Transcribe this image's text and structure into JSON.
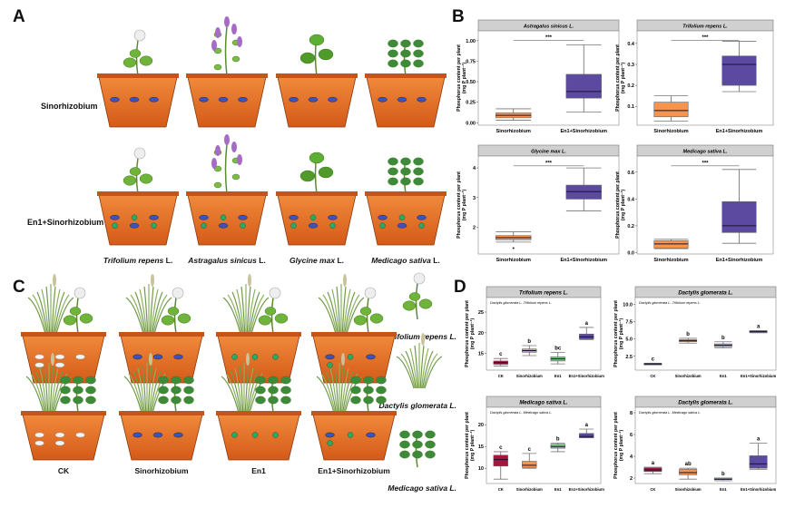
{
  "panels": {
    "A": "A",
    "B": "B",
    "C": "C",
    "D": "D"
  },
  "panel_a": {
    "rows": [
      "Sinorhizobium",
      "En1+Sinorhizobium"
    ],
    "species": [
      {
        "genus": "Trifolium repens",
        "suffix": " L."
      },
      {
        "genus": "Astragalus sinicus",
        "suffix": " L."
      },
      {
        "genus": "Glycine max",
        "suffix": " L."
      },
      {
        "genus": "Medicago sativa",
        "suffix": " L."
      }
    ]
  },
  "panel_c": {
    "groups": [
      "CK",
      "Sinorhizobium",
      "En1",
      "En1+Sinorhizobium"
    ],
    "legend": [
      "Trifolium repens L.",
      "Dactylis glomerata L.",
      "Medicago sativa L."
    ]
  },
  "colors": {
    "CK": "#a3173f",
    "Sinorhizobium": "#f39450",
    "En1": "#7dc38d",
    "En1+Sinorhizobium": "#5b4a9f",
    "pot": "#e0702a"
  },
  "chart_data": [
    {
      "type": "box",
      "title": "Astragalus sinicus L.",
      "ylabel": "Phosphorus content per plant",
      "ylabel2": "(mg P plant⁻¹)",
      "categories": [
        "Sinorhizobium",
        "En1+Sinorhizobium"
      ],
      "ylim": [
        -0.03,
        1.12
      ],
      "yticks": [
        0,
        0.25,
        0.5,
        0.75,
        1.0
      ],
      "yticklabels": [
        "0.00",
        "0.25",
        "0.50",
        "0.75",
        "1.00"
      ],
      "significance": "***",
      "boxes": [
        {
          "min": 0.03,
          "q1": 0.06,
          "median": 0.09,
          "q3": 0.12,
          "max": 0.17,
          "color": "#f39450"
        },
        {
          "min": 0.13,
          "q1": 0.3,
          "median": 0.38,
          "q3": 0.59,
          "max": 0.95,
          "color": "#5b4a9f"
        }
      ]
    },
    {
      "type": "box",
      "title": "Trifolium repens L.",
      "ylabel": "Phosphorus content per plant",
      "ylabel2": "(mg P plant⁻¹)",
      "categories": [
        "Sinorhizobium",
        "En1+Sinorhizobium"
      ],
      "ylim": [
        0.01,
        0.46
      ],
      "yticks": [
        0.1,
        0.2,
        0.3,
        0.4
      ],
      "yticklabels": [
        "0.1",
        "0.2",
        "0.3",
        "0.4"
      ],
      "significance": "***",
      "boxes": [
        {
          "min": 0.03,
          "q1": 0.05,
          "median": 0.08,
          "q3": 0.12,
          "max": 0.15,
          "color": "#f39450"
        },
        {
          "min": 0.17,
          "q1": 0.2,
          "median": 0.3,
          "q3": 0.34,
          "max": 0.41,
          "color": "#5b4a9f"
        }
      ]
    },
    {
      "type": "box",
      "title": "Glycine max L.",
      "ylabel": "Phosphorus content per plant",
      "ylabel2": "(mg P plant⁻¹)",
      "categories": [
        "Sinorhizobium",
        "En1+Sinorhizobium"
      ],
      "ylim": [
        1.1,
        4.4
      ],
      "yticks": [
        2,
        3,
        4
      ],
      "yticklabels": [
        "2",
        "3",
        "4"
      ],
      "significance": "***",
      "boxes": [
        {
          "min": 1.5,
          "q1": 1.58,
          "median": 1.65,
          "q3": 1.72,
          "max": 1.85,
          "outliers": [
            1.3
          ],
          "color": "#f39450"
        },
        {
          "min": 2.55,
          "q1": 2.95,
          "median": 3.2,
          "q3": 3.42,
          "max": 4.0,
          "color": "#5b4a9f"
        }
      ]
    },
    {
      "type": "box",
      "title": "Medicago sativa L.",
      "ylabel": "Phosphorus content per plant",
      "ylabel2": "(mg P plant⁻¹)",
      "categories": [
        "Sinorhizobium",
        "En1+Sinorhizobium"
      ],
      "ylim": [
        -0.01,
        0.72
      ],
      "yticks": [
        0,
        0.2,
        0.4,
        0.6
      ],
      "yticklabels": [
        "0.0",
        "0.2",
        "0.4",
        "0.6"
      ],
      "significance": "***",
      "boxes": [
        {
          "min": 0.03,
          "q1": 0.035,
          "median": 0.065,
          "q3": 0.09,
          "max": 0.1,
          "color": "#f39450"
        },
        {
          "min": 0.07,
          "q1": 0.15,
          "median": 0.2,
          "q3": 0.38,
          "max": 0.62,
          "color": "#5b4a9f"
        }
      ]
    },
    {
      "type": "box",
      "title": "Trifolium repens  L.",
      "subtitle": "Dactylis glomerata L.-Trifolium repens L.",
      "ylabel": "Phosphorus content per plant",
      "ylabel2": "(mg P plant⁻¹)",
      "categories": [
        "CK",
        "Sinorhizobium",
        "En1",
        "En1+Sinorhizobium"
      ],
      "ylim": [
        11,
        28.5
      ],
      "yticks": [
        15,
        20,
        25
      ],
      "yticklabels": [
        "15",
        "20",
        "25"
      ],
      "letters": [
        "c",
        "b",
        "bc",
        "a"
      ],
      "boxes": [
        {
          "min": 12,
          "q1": 12.4,
          "median": 12.8,
          "q3": 13.2,
          "max": 13.8,
          "color": "#a3173f"
        },
        {
          "min": 14.5,
          "q1": 15.3,
          "median": 15.7,
          "q3": 16.1,
          "max": 16.9,
          "color": "#f39450"
        },
        {
          "min": 12.5,
          "q1": 13.2,
          "median": 13.7,
          "q3": 14.2,
          "max": 15.3,
          "color": "#7dc38d"
        },
        {
          "min": 18.3,
          "q1": 18.5,
          "median": 19,
          "q3": 19.7,
          "max": 21.3,
          "color": "#5b4a9f"
        }
      ]
    },
    {
      "type": "box",
      "title": "Dactylis glomerata  L.",
      "subtitle": "Dactylis glomerata L.-Trifolium repens L.",
      "ylabel": "Phosphorus content per plant",
      "ylabel2": "(mg P plant⁻¹)",
      "categories": [
        "CK",
        "Sinorhizobium",
        "En1",
        "En1+Sinorhizobium"
      ],
      "ylim": [
        0.5,
        11
      ],
      "yticks": [
        2.5,
        5.0,
        7.5,
        10.0
      ],
      "yticklabels": [
        "2.5",
        "5.0",
        "7.5",
        "10.0"
      ],
      "letters": [
        "c",
        "b",
        "b",
        "a"
      ],
      "boxes": [
        {
          "min": 1.3,
          "q1": 1.35,
          "median": 1.4,
          "q3": 1.45,
          "max": 1.5,
          "color": "#a3173f"
        },
        {
          "min": 4.4,
          "q1": 4.6,
          "median": 4.75,
          "q3": 4.9,
          "max": 5.1,
          "color": "#f39450"
        },
        {
          "min": 3.7,
          "q1": 3.9,
          "median": 4.1,
          "q3": 4.3,
          "max": 4.6,
          "color": "#7dc38d"
        },
        {
          "min": 5.9,
          "q1": 6.0,
          "median": 6.1,
          "q3": 6.15,
          "max": 6.2,
          "color": "#5b4a9f"
        }
      ]
    },
    {
      "type": "box",
      "title": "Medicago sativa  L.",
      "subtitle": "Dactylis glomerata L.-Medicago sativa L.",
      "ylabel": "Phosphorus content per plant",
      "ylabel2": "(mg P plant⁻¹)",
      "categories": [
        "CK",
        "Sinorhizobium",
        "En1",
        "En1+Sinorhizobium"
      ],
      "ylim": [
        6.5,
        24
      ],
      "yticks": [
        10,
        15,
        20
      ],
      "yticklabels": [
        "10",
        "15",
        "20"
      ],
      "letters": [
        "c",
        "c",
        "b",
        "a"
      ],
      "boxes": [
        {
          "min": 7.5,
          "q1": 10.5,
          "median": 12,
          "q3": 13,
          "max": 13.8,
          "color": "#a3173f"
        },
        {
          "min": 10,
          "q1": 10.2,
          "median": 10.7,
          "q3": 11.6,
          "max": 13.4,
          "color": "#f39450"
        },
        {
          "min": 13.8,
          "q1": 14.6,
          "median": 15,
          "q3": 15.5,
          "max": 15.8,
          "color": "#7dc38d"
        },
        {
          "min": 17,
          "q1": 17,
          "median": 17.3,
          "q3": 18,
          "max": 19,
          "color": "#5b4a9f"
        }
      ]
    },
    {
      "type": "box",
      "title": "Dactylis glomerata  L.",
      "subtitle": "Dactylis glomerata L.-Medicago sativa L.",
      "ylabel": "Phosphorus content per plant",
      "ylabel2": "(mg P plant⁻¹)",
      "categories": [
        "CK",
        "Sinorhizobium",
        "En1",
        "En1+Sinorhizobium"
      ],
      "ylim": [
        1.5,
        8.5
      ],
      "yticks": [
        2,
        4,
        6,
        8
      ],
      "yticklabels": [
        "2",
        "4",
        "6",
        "8"
      ],
      "letters": [
        "a",
        "ab",
        "b",
        "a"
      ],
      "boxes": [
        {
          "min": 2.4,
          "q1": 2.6,
          "median": 2.75,
          "q3": 2.95,
          "max": 3.0,
          "color": "#a3173f"
        },
        {
          "min": 1.9,
          "q1": 2.3,
          "median": 2.5,
          "q3": 2.8,
          "max": 2.9,
          "color": "#f39450"
        },
        {
          "min": 1.75,
          "q1": 1.85,
          "median": 1.9,
          "q3": 2.0,
          "max": 2.0,
          "color": "#7dc38d"
        },
        {
          "min": 2.8,
          "q1": 2.9,
          "median": 3.3,
          "q3": 4.05,
          "max": 5.2,
          "color": "#5b4a9f"
        }
      ]
    }
  ]
}
